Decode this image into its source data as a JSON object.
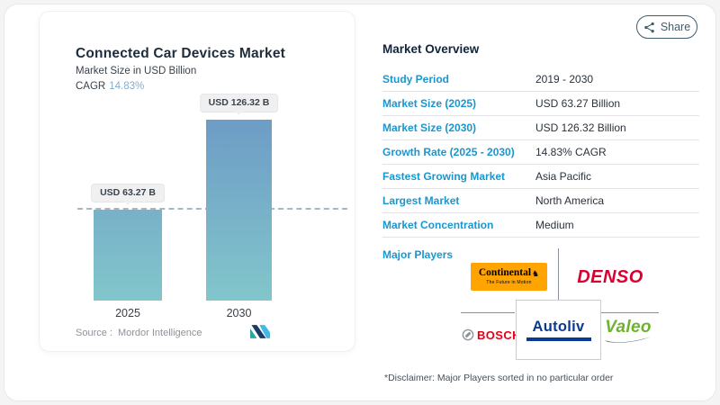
{
  "share": {
    "label": "Share",
    "icon": "share-nodes-icon"
  },
  "chart_card": {
    "title": "Connected Car Devices Market",
    "subtitle": "Market Size in USD Billion",
    "cagr_label": "CAGR",
    "cagr_value": "14.83%",
    "source_label": "Source :",
    "source_value": "Mordor Intelligence",
    "logo": "mordor-intelligence-logo"
  },
  "chart_data": {
    "type": "bar",
    "title": "Connected Car Devices Market",
    "subtitle": "Market Size in USD Billion",
    "categories": [
      "2025",
      "2030"
    ],
    "values": [
      63.27,
      126.32
    ],
    "value_labels": [
      "USD 63.27 B",
      "USD 126.32 B"
    ],
    "unit": "USD Billion",
    "ylim": [
      0,
      126.32
    ],
    "grid": false,
    "annotations": [
      "dashed horizontal reference line at 2025 value (63.27)"
    ],
    "colors": {
      "bar_top": "#6D9CC5",
      "bar_bottom": "#82C6CB",
      "dashed_line": "#87A0AE"
    }
  },
  "overview": {
    "heading": "Market Overview",
    "rows": [
      {
        "label": "Study Period",
        "value": "2019 - 2030"
      },
      {
        "label": "Market Size (2025)",
        "value": "USD 63.27 Billion"
      },
      {
        "label": "Market Size (2030)",
        "value": "USD 126.32 Billion"
      },
      {
        "label": "Growth Rate (2025 - 2030)",
        "value": "14.83% CAGR"
      },
      {
        "label": "Fastest Growing Market",
        "value": "Asia Pacific"
      },
      {
        "label": "Largest Market",
        "value": "North America"
      },
      {
        "label": "Market Concentration",
        "value": "Medium"
      }
    ],
    "major_players_label": "Major Players",
    "players": [
      {
        "name": "Continental",
        "tagline": "The Future in Motion",
        "bg": "#FFA400",
        "text_color": "#000000"
      },
      {
        "name": "DENSO",
        "color": "#DC0032"
      },
      {
        "name": "BOSCH",
        "color": "#E30016",
        "icon": "bosch-armature-icon"
      },
      {
        "name": "Autoliv",
        "color": "#0B3A91"
      },
      {
        "name": "Valeo",
        "color": "#6EB32D"
      }
    ],
    "disclaimer": "*Disclaimer: Major Players sorted in no particular order"
  },
  "colors": {
    "label_blue": "#1A96CF",
    "heading_navy": "#13243A",
    "cagr_value_blue": "#84ADCA",
    "share_slate": "#3E5D6D",
    "row_border": "#E3E3E7",
    "source_gray": "#8E9298"
  }
}
